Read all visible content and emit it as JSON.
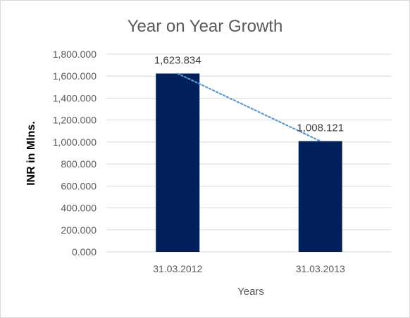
{
  "chart_data": {
    "type": "bar",
    "title": "Year on Year Growth",
    "xlabel": "Years",
    "ylabel": "INR in Mlns.",
    "categories": [
      "31.03.2012",
      "31.03.2013"
    ],
    "values": [
      1623.834,
      1008.121
    ],
    "data_labels": [
      "1,623.834",
      "1,008.121"
    ],
    "ylim": [
      0,
      1800
    ],
    "y_ticks": [
      0,
      200,
      400,
      600,
      800,
      1000,
      1200,
      1400,
      1600,
      1800
    ],
    "y_tick_labels": [
      "0.000",
      "200.000",
      "400.000",
      "600.000",
      "800.000",
      "1,000.000",
      "1,200.000",
      "1,400.000",
      "1,600.000",
      "1,800.000"
    ],
    "grid": true,
    "legend": "none",
    "trendline": "linear",
    "colors": {
      "bar": "#001F5B",
      "trendline": "#5B9BD5",
      "grid": "#d9d9d9",
      "text": "#595959"
    }
  }
}
